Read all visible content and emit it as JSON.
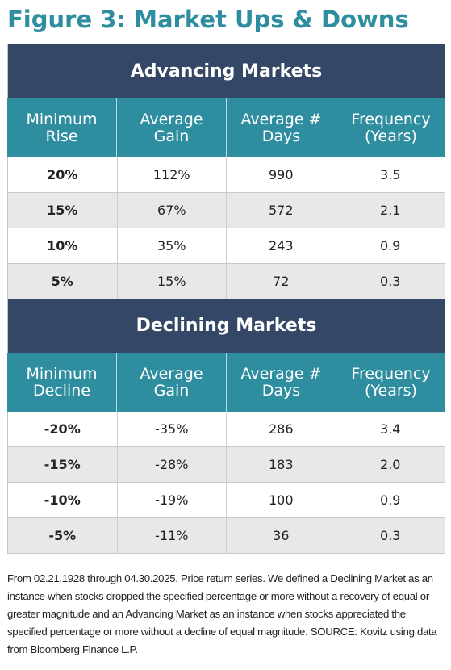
{
  "title": "Figure 3: Market Ups & Downs",
  "advancing": {
    "banner": "Advancing Markets",
    "headers": [
      "Minimum Rise",
      "Average Gain",
      "Average # Days",
      "Frequency (Years)"
    ],
    "rows": [
      [
        "20%",
        "112%",
        "990",
        "3.5"
      ],
      [
        "15%",
        "67%",
        "572",
        "2.1"
      ],
      [
        "10%",
        "35%",
        "243",
        "0.9"
      ],
      [
        "5%",
        "15%",
        "72",
        "0.3"
      ]
    ]
  },
  "declining": {
    "banner": "Declining Markets",
    "headers": [
      "Minimum Decline",
      "Average Gain",
      "Average # Days",
      "Frequency (Years)"
    ],
    "rows": [
      [
        "-20%",
        "-35%",
        "286",
        "3.4"
      ],
      [
        "-15%",
        "-28%",
        "183",
        "2.0"
      ],
      [
        "-10%",
        "-19%",
        "100",
        "0.9"
      ],
      [
        "-5%",
        "-11%",
        "36",
        "0.3"
      ]
    ]
  },
  "footnote": "From 02.21.1928 through 04.30.2025. Price return series. We defined a Declining Market as an instance when stocks dropped the specified percentage or more without a recovery of equal or greater magnitude and an Advancing Market as an instance when stocks appreciated the specified percentage or more without a decline of equal magnitude. SOURCE: Kovitz using data from Bloomberg Finance L.P.",
  "colors": {
    "title": "#2e8ea0",
    "banner": "#344766",
    "header": "#2e8ea0",
    "shade": "#e8e8e8"
  }
}
